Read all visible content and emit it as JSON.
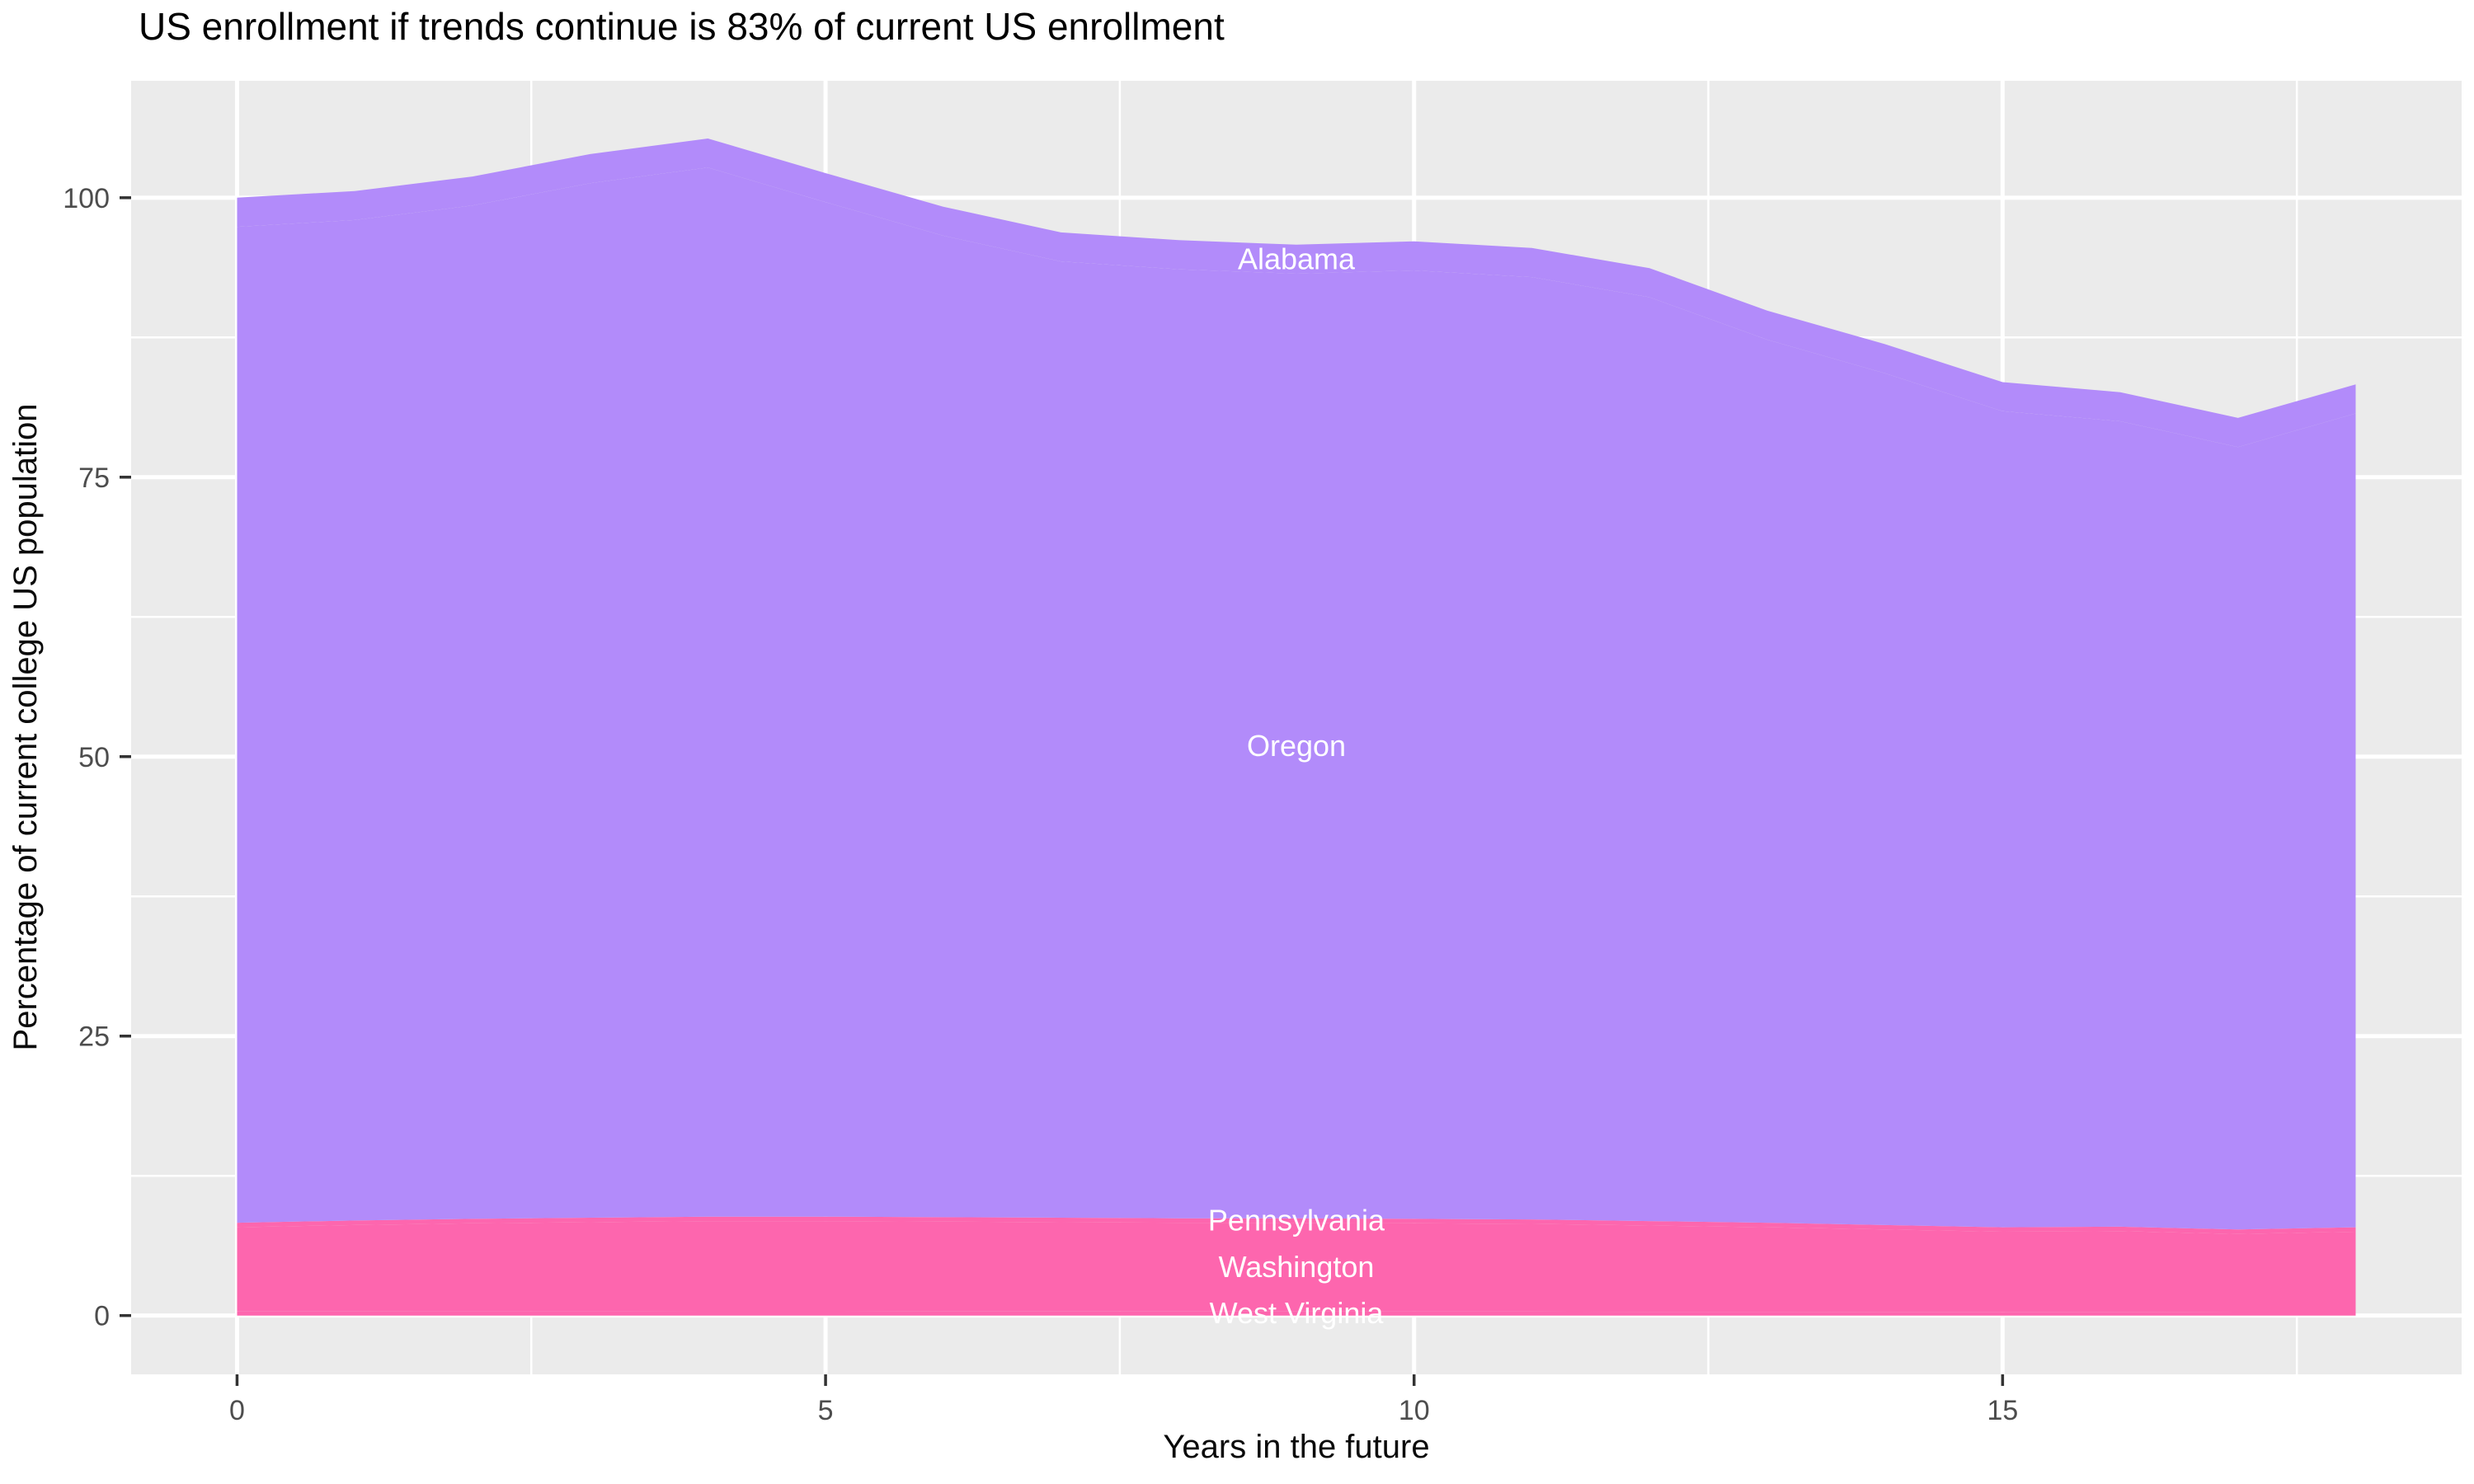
{
  "title": "US enrollment if trends continue is 83% of current US enrollment",
  "chart_data": {
    "type": "area",
    "stacked": true,
    "title": "US enrollment if trends continue is 83% of current US enrollment",
    "xlabel": "Years in the future",
    "ylabel": "Percentage of current college US population",
    "x": [
      0,
      1,
      2,
      3,
      4,
      5,
      6,
      7,
      8,
      9,
      10,
      11,
      12,
      13,
      14,
      15,
      16,
      17,
      18
    ],
    "series": [
      {
        "name": "West Virginia",
        "color": "#FD66AE",
        "values": [
          0.4,
          0.4,
          0.39,
          0.39,
          0.38,
          0.38,
          0.37,
          0.37,
          0.36,
          0.36,
          0.35,
          0.35,
          0.34,
          0.34,
          0.33,
          0.32,
          0.32,
          0.31,
          0.31
        ]
      },
      {
        "name": "Washington",
        "color": "#FD66AE",
        "values": [
          7.5,
          7.7,
          7.86,
          7.96,
          8.07,
          8.07,
          8.03,
          7.98,
          7.94,
          7.94,
          7.9,
          7.85,
          7.71,
          7.56,
          7.37,
          7.18,
          7.23,
          6.99,
          7.19
        ]
      },
      {
        "name": "Pennsylvania",
        "color": "#FD66AE",
        "values": [
          0.4,
          0.4,
          0.4,
          0.4,
          0.4,
          0.4,
          0.4,
          0.4,
          0.4,
          0.4,
          0.4,
          0.4,
          0.4,
          0.4,
          0.4,
          0.4,
          0.4,
          0.4,
          0.4
        ]
      },
      {
        "name": "Oregon",
        "color": "#B28BFA",
        "values": [
          89.1,
          89.5,
          90.65,
          92.55,
          93.85,
          90.75,
          87.8,
          85.55,
          84.9,
          84.5,
          84.85,
          84.3,
          82.65,
          79.0,
          76.2,
          73.0,
          72.05,
          70.0,
          72.8
        ]
      },
      {
        "name": "Alabama",
        "color": "#B28BFA",
        "values": [
          2.6,
          2.6,
          2.6,
          2.6,
          2.6,
          2.6,
          2.6,
          2.6,
          2.6,
          2.6,
          2.6,
          2.6,
          2.6,
          2.6,
          2.6,
          2.6,
          2.6,
          2.6,
          2.6
        ]
      }
    ],
    "stack_totals": [
      100.0,
      100.6,
      101.9,
      103.9,
      105.3,
      102.2,
      99.2,
      96.9,
      96.2,
      95.8,
      96.1,
      95.5,
      93.7,
      89.9,
      86.9,
      83.5,
      82.6,
      80.3,
      83.3
    ],
    "x_ticks": [
      0,
      5,
      10,
      15
    ],
    "x_minor_ticks": [
      2.5,
      7.5,
      12.5,
      17.5
    ],
    "y_ticks": [
      0,
      25,
      50,
      75,
      100
    ],
    "y_minor_ticks": [
      12.5,
      37.5,
      62.5,
      87.5
    ],
    "x_range": [
      -0.9,
      18.9
    ],
    "y_range": [
      -5.26,
      110.46
    ],
    "label_x_index": 9,
    "legend_position": "none",
    "grid": true,
    "style": {
      "panel_bg": "#EBEBEB",
      "grid_color": "#FFFFFF",
      "tick_color": "#333333",
      "tick_label_color": "#4d4d4d",
      "area_label_color": "#FFFFFF",
      "purple": "#B28BFA",
      "pink": "#FD66AE"
    }
  }
}
